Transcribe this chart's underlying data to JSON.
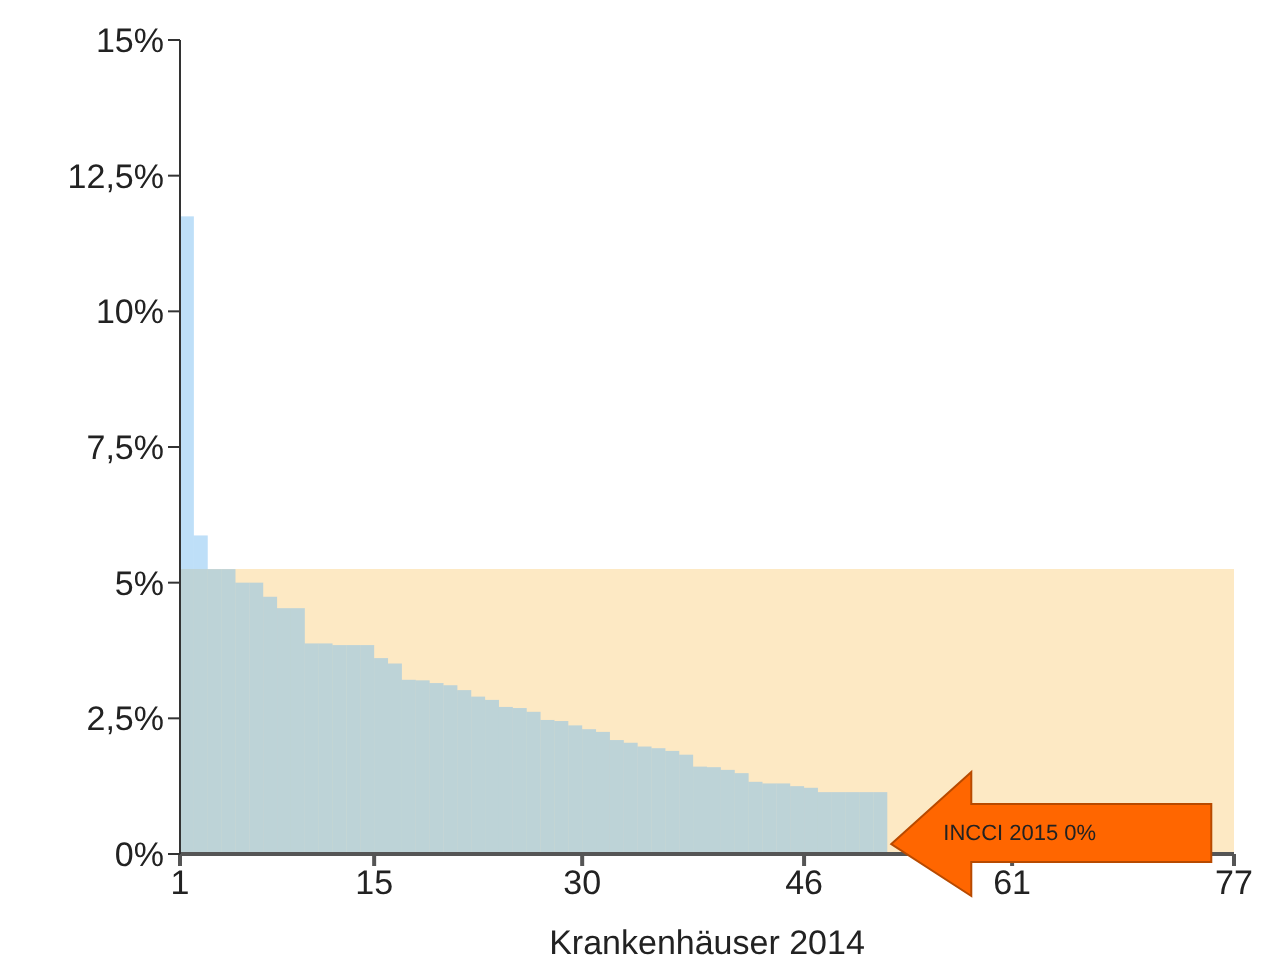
{
  "chart_data": {
    "type": "histogram",
    "xlabel": "Krankenhäuser 2014",
    "xlim": [
      1,
      77
    ],
    "xticks": [
      1,
      15,
      30,
      46,
      61,
      77
    ],
    "ylim": [
      0,
      15
    ],
    "yticks": [
      {
        "value": 0,
        "label": "0%"
      },
      {
        "value": 2.5,
        "label": "2,5%"
      },
      {
        "value": 5,
        "label": "5%"
      },
      {
        "value": 7.5,
        "label": "7,5%"
      },
      {
        "value": 10,
        "label": "10%"
      },
      {
        "value": 12.5,
        "label": "12,5%"
      },
      {
        "value": 15,
        "label": "15%"
      }
    ],
    "bins": [
      1,
      2,
      3,
      4,
      5,
      6,
      7,
      8,
      9,
      10,
      11,
      12,
      13,
      14,
      15,
      16,
      17,
      18,
      19,
      20,
      21,
      22,
      23,
      24,
      25,
      26,
      27,
      28,
      29,
      30,
      31,
      32,
      33,
      34,
      35,
      36,
      37,
      38,
      39,
      40,
      41,
      42,
      43,
      44,
      45,
      46,
      47,
      48,
      49,
      50,
      51,
      52
    ],
    "color": "#6fb8f0",
    "values": [
      11.75,
      5.87,
      5.25,
      5.25,
      5.0,
      5.0,
      4.74,
      4.53,
      4.53,
      3.88,
      3.88,
      3.85,
      3.85,
      3.85,
      3.61,
      3.51,
      3.21,
      3.2,
      3.15,
      3.11,
      3.02,
      2.9,
      2.84,
      2.71,
      2.69,
      2.62,
      2.47,
      2.45,
      2.37,
      2.3,
      2.25,
      2.1,
      2.05,
      1.98,
      1.95,
      1.9,
      1.83,
      1.61,
      1.6,
      1.55,
      1.49,
      1.33,
      1.3,
      1.3,
      1.25,
      1.22,
      1.14,
      1.14,
      1.14,
      1.14,
      1.14
    ],
    "bands": [
      {
        "axis": "y",
        "from": 0,
        "to": 5.25,
        "color": "#fde9c4"
      }
    ],
    "annotations": [
      {
        "text": "INCCI 2015 0%",
        "x": 52,
        "y": 0
      }
    ]
  }
}
